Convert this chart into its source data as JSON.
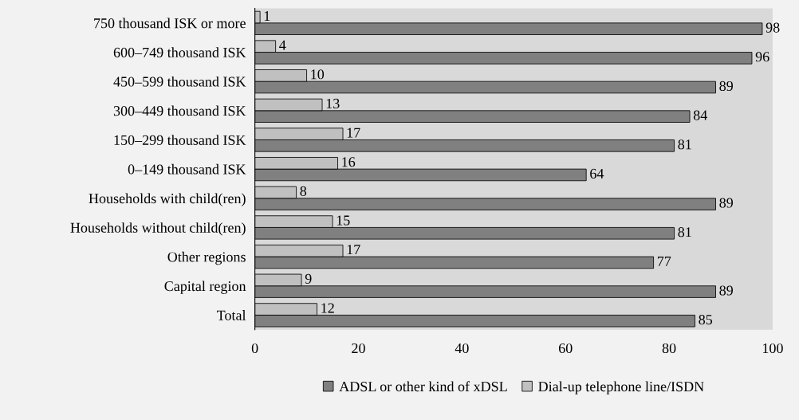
{
  "chart_data": {
    "type": "bar",
    "orientation": "horizontal",
    "categories": [
      "750 thousand ISK or more",
      "600–749 thousand ISK",
      "450–599 thousand ISK",
      "300–449 thousand ISK",
      "150–299 thousand ISK",
      "0–149 thousand ISK",
      "Households with child(ren)",
      "Households without child(ren)",
      "Other regions",
      "Capital region",
      "Total"
    ],
    "series": [
      {
        "name": "ADSL or other kind of xDSL",
        "color": "#808080",
        "values": [
          98,
          96,
          89,
          84,
          81,
          64,
          89,
          81,
          77,
          89,
          85
        ]
      },
      {
        "name": "Dial-up telephone line/ISDN",
        "color": "#c0c0c0",
        "values": [
          1,
          4,
          10,
          13,
          17,
          16,
          8,
          15,
          17,
          9,
          12
        ]
      }
    ],
    "xlim": [
      0,
      100
    ],
    "xticks": [
      0,
      20,
      40,
      60,
      80,
      100
    ],
    "data_labels": true,
    "grid": false,
    "legend": "bottom"
  }
}
